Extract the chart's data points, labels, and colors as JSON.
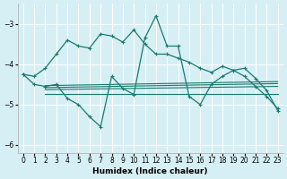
{
  "background_color": "#d6eff5",
  "grid_color": "#b8dde8",
  "line_color": "#1a7a6e",
  "xlabel": "Humidex (Indice chaleur)",
  "xlim": [
    -0.5,
    23.5
  ],
  "ylim": [
    -6.2,
    -2.5
  ],
  "yticks": [
    -6,
    -5,
    -4,
    -3
  ],
  "xticks": [
    0,
    1,
    2,
    3,
    4,
    5,
    6,
    7,
    8,
    9,
    10,
    11,
    12,
    13,
    14,
    15,
    16,
    17,
    18,
    19,
    20,
    21,
    22,
    23
  ],
  "line_diagonal": {
    "x": [
      0,
      1,
      2,
      3,
      4,
      5,
      6,
      7,
      8,
      9,
      10,
      11,
      12,
      13,
      14,
      15,
      16,
      17,
      18,
      19,
      20,
      21,
      22,
      23
    ],
    "y": [
      -4.25,
      -4.3,
      -4.1,
      -3.75,
      -3.4,
      -3.55,
      -3.6,
      -3.25,
      -3.3,
      -3.45,
      -3.15,
      -3.5,
      -3.75,
      -3.75,
      -3.85,
      -3.95,
      -4.1,
      -4.2,
      -4.05,
      -4.15,
      -4.3,
      -4.55,
      -4.8,
      -5.1
    ]
  },
  "line_zigzag": {
    "x": [
      0,
      1,
      2,
      3,
      4,
      5,
      6,
      7,
      8,
      9,
      10,
      11,
      12,
      13,
      14,
      15,
      16,
      17,
      18,
      19,
      20,
      21,
      22,
      23
    ],
    "y": [
      -4.25,
      -4.5,
      -4.55,
      -4.5,
      -4.85,
      -5.0,
      -5.3,
      -5.55,
      -4.3,
      -4.6,
      -4.75,
      -3.35,
      -2.8,
      -3.55,
      -3.55,
      -4.8,
      -5.0,
      -4.5,
      -4.3,
      -4.15,
      -4.1,
      -4.35,
      -4.65,
      -5.15
    ]
  },
  "reg_lines": [
    {
      "x0": 2,
      "x1": 23,
      "y0": -4.73,
      "y1": -4.73
    },
    {
      "x0": 2,
      "x1": 23,
      "y0": -4.63,
      "y1": -4.55
    },
    {
      "x0": 2,
      "x1": 23,
      "y0": -4.58,
      "y1": -4.48
    },
    {
      "x0": 2,
      "x1": 23,
      "y0": -4.53,
      "y1": -4.43
    }
  ]
}
